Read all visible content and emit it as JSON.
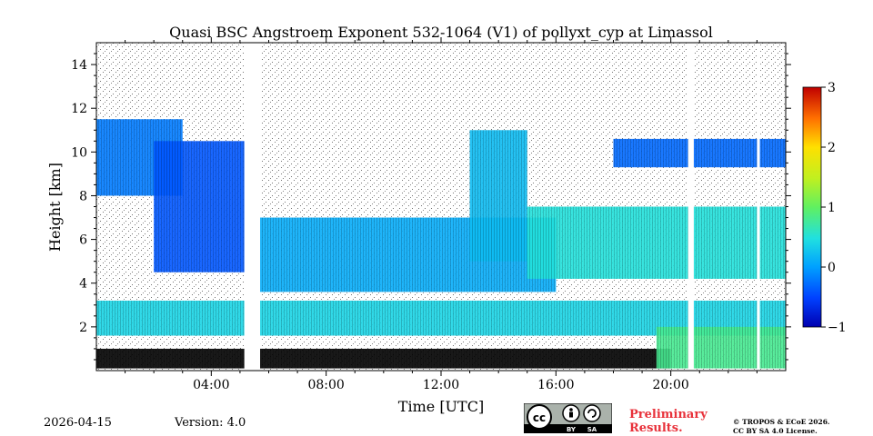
{
  "chart_data": {
    "type": "heatmap",
    "title": "Quasi BSC Angstroem Exponent 532-1064 (V1) of pollyxt_cyp at Limassol",
    "xlabel": "Time [UTC]",
    "ylabel": "Height [km]",
    "xlim": [
      0,
      24
    ],
    "ylim": [
      0,
      15
    ],
    "x_ticks": [
      {
        "value": 4,
        "label": "04:00"
      },
      {
        "value": 8,
        "label": "08:00"
      },
      {
        "value": 12,
        "label": "12:00"
      },
      {
        "value": 16,
        "label": "16:00"
      },
      {
        "value": 20,
        "label": "20:00"
      }
    ],
    "y_ticks": [
      {
        "value": 2,
        "label": "2"
      },
      {
        "value": 4,
        "label": "4"
      },
      {
        "value": 6,
        "label": "6"
      },
      {
        "value": 8,
        "label": "8"
      },
      {
        "value": 10,
        "label": "10"
      },
      {
        "value": 12,
        "label": "12"
      },
      {
        "value": 14,
        "label": "14"
      }
    ],
    "colorbar": {
      "range": [
        -1,
        3
      ],
      "ticks": [
        {
          "value": 3,
          "label": "3"
        },
        {
          "value": 2,
          "label": "2"
        },
        {
          "value": 1,
          "label": "1"
        },
        {
          "value": 0,
          "label": "0"
        },
        {
          "value": -1,
          "label": "−1"
        }
      ]
    },
    "layers": [
      {
        "name": "boundary-layer",
        "x": [
          0,
          24
        ],
        "bottom": 1.6,
        "top": 3.2,
        "value": 0.4
      },
      {
        "name": "lower-layer-dark",
        "x": [
          0,
          20
        ],
        "bottom": 0.1,
        "top": 1.0,
        "value": -1.0
      },
      {
        "name": "night-surface-layer",
        "x": [
          19.5,
          24
        ],
        "bottom": 0.1,
        "top": 2.0,
        "value": 0.8
      },
      {
        "name": "dust-layer-1",
        "x": [
          0,
          3
        ],
        "bottom": 8.0,
        "top": 11.5,
        "value": -0.2
      },
      {
        "name": "descending-plume-1",
        "x": [
          2,
          5.4
        ],
        "bottom": 4.5,
        "top": 10.5,
        "value": -0.4
      },
      {
        "name": "elevated-aerosol",
        "x": [
          5.5,
          16
        ],
        "bottom": 3.6,
        "top": 7.0,
        "value": 0.1
      },
      {
        "name": "descending-plume-2",
        "x": [
          13,
          15
        ],
        "bottom": 5.0,
        "top": 11.0,
        "value": 0.2
      },
      {
        "name": "evening-aerosol",
        "x": [
          15,
          24
        ],
        "bottom": 4.2,
        "top": 7.5,
        "value": 0.5
      },
      {
        "name": "upper-cloud",
        "x": [
          18,
          24
        ],
        "bottom": 9.3,
        "top": 10.6,
        "value": -0.3
      }
    ],
    "gaps": [
      {
        "x": [
          5.15,
          5.7
        ]
      },
      {
        "x": [
          20.6,
          20.8
        ]
      },
      {
        "x": [
          23.0,
          23.1
        ]
      }
    ]
  },
  "footer": {
    "date": "2026-04-15",
    "version": "Version: 4.0",
    "preliminary_line1": "Preliminary",
    "preliminary_line2": "Results.",
    "copyright_line1": "© TROPOS & ECoE 2026.",
    "copyright_line2": "CC BY SA 4.0 License.",
    "license_badge_by": "BY",
    "license_badge_sa": "SA"
  }
}
